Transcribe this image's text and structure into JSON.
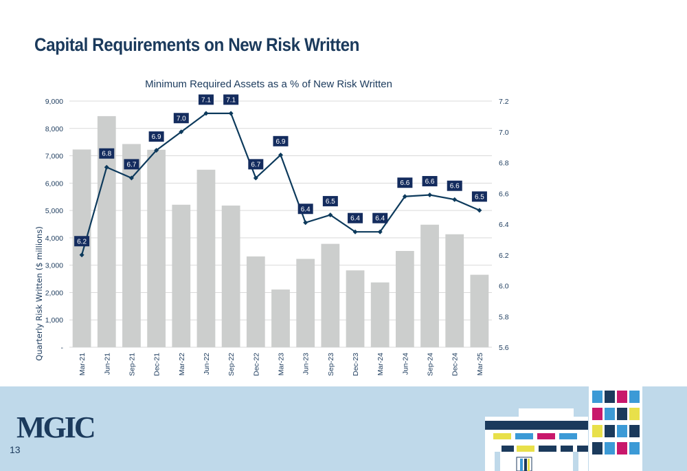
{
  "slide": {
    "title": "Capital Requirements on New Risk Written",
    "page_number": "13"
  },
  "logo": {
    "text": "MGIC"
  },
  "colors": {
    "bar": "#cccecd",
    "line": "#0d3a5c",
    "label_bg": "#142c5e",
    "title": "#1b3a5c",
    "footer": "#bfd9ea"
  },
  "chart_data": {
    "type": "bar+line",
    "title": "Minimum Required Assets as a % of New Risk Written",
    "ylabel": "Quarterly Risk Written ($ millions)",
    "categories": [
      "Mar-21",
      "Jun-21",
      "Sep-21",
      "Dec-21",
      "Mar-22",
      "Jun-22",
      "Sep-22",
      "Dec-22",
      "Mar-23",
      "Jun-23",
      "Sep-23",
      "Dec-23",
      "Mar-24",
      "Jun-24",
      "Sep-24",
      "Dec-24",
      "Mar-25"
    ],
    "bars": [
      7230,
      8450,
      7430,
      7220,
      5210,
      6490,
      5180,
      3320,
      2110,
      3230,
      3780,
      2810,
      2370,
      3520,
      4480,
      4130,
      2650
    ],
    "line": [
      6.2,
      6.77,
      6.7,
      6.88,
      7.0,
      7.12,
      7.12,
      6.7,
      6.85,
      6.41,
      6.46,
      6.35,
      6.35,
      6.58,
      6.59,
      6.56,
      6.49
    ],
    "line_labels": [
      "6.2",
      "6.8",
      "6.7",
      "6.9",
      "7.0",
      "7.1",
      "7.1",
      "6.7",
      "6.9",
      "6.4",
      "6.5",
      "6.4",
      "6.4",
      "6.6",
      "6.6",
      "6.6",
      "6.5"
    ],
    "y_left_ticks": [
      "-",
      "1,000",
      "2,000",
      "3,000",
      "4,000",
      "5,000",
      "6,000",
      "7,000",
      "8,000",
      "9,000"
    ],
    "y_left_range": [
      0,
      9000
    ],
    "y_right_ticks": [
      "5.6",
      "5.8",
      "6.0",
      "6.2",
      "6.4",
      "6.6",
      "6.8",
      "7.0",
      "7.2"
    ],
    "y_right_range": [
      5.6,
      7.2
    ],
    "grid": true
  }
}
